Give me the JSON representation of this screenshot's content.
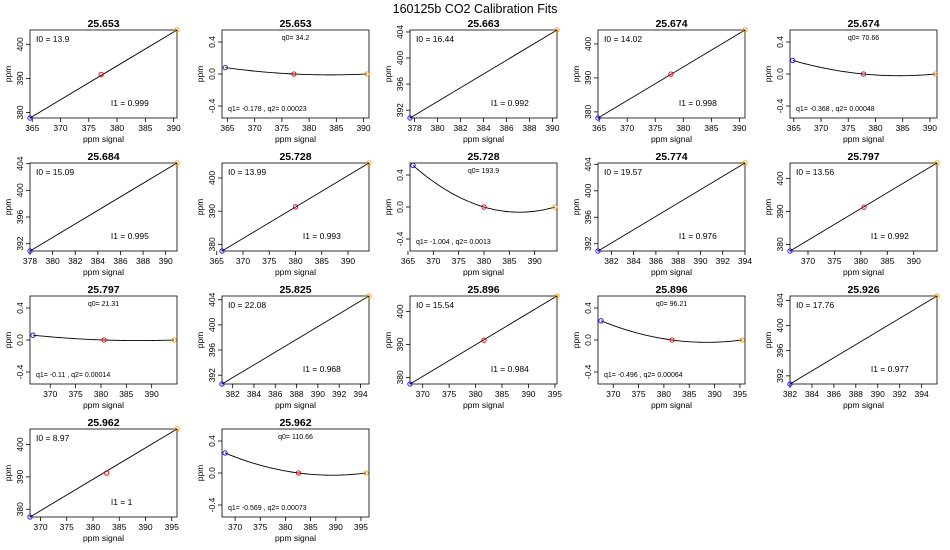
{
  "title": "160125b   CO2 Calibration Fits",
  "axis_labels": {
    "x": "ppm signal",
    "y": "ppm"
  },
  "point_colors": [
    "#2200ff",
    "#dd0000",
    "#ff9900"
  ],
  "chart_data": [
    {
      "type": "scatter",
      "kind": "linear",
      "title": "25.653",
      "x": [
        364.6,
        377.2,
        390.6
      ],
      "y": [
        378.4,
        391.2,
        404.2
      ],
      "xlim": [
        364.6,
        390.6
      ],
      "ylim": [
        378.4,
        404.2
      ],
      "xticks": [
        "365",
        "370",
        "375",
        "380",
        "385",
        "390"
      ],
      "yticks": [
        "380",
        "390",
        "400"
      ],
      "annotations": {
        "I0": "I0 =  13.9",
        "I1": "I1 =  0.999"
      }
    },
    {
      "type": "scatter",
      "kind": "quadratic",
      "title": "25.653",
      "x": [
        364.6,
        377.2,
        390.6
      ],
      "y": [
        0.08,
        0.0,
        0.0
      ],
      "xlim": [
        364.0,
        391.0
      ],
      "ylim": [
        -0.55,
        0.55
      ],
      "xticks": [
        "365",
        "370",
        "375",
        "380",
        "385",
        "390"
      ],
      "yticks": [
        "-0.4",
        "0.0",
        "0.4"
      ],
      "annotations": {
        "q0": "q0= 34.2",
        "q": "q1= -0.178 , q2= 0.00023"
      }
    },
    {
      "type": "scatter",
      "kind": "linear",
      "title": "25.663",
      "x": [
        377.6,
        390.4
      ],
      "y": [
        390.8,
        404.3
      ],
      "xlim": [
        377.6,
        390.4
      ],
      "ylim": [
        390.8,
        404.3
      ],
      "xticks": [
        "378",
        "380",
        "382",
        "384",
        "386",
        "388",
        "390"
      ],
      "yticks": [
        "392",
        "396",
        "400",
        "404"
      ],
      "annotations": {
        "I0": "I0 =  16.44",
        "I1": "I1 =  0.992"
      }
    },
    {
      "type": "scatter",
      "kind": "linear",
      "title": "25.674",
      "x": [
        364.8,
        377.8,
        391.0
      ],
      "y": [
        378.2,
        391.1,
        404.1
      ],
      "xlim": [
        364.8,
        391.0
      ],
      "ylim": [
        378.2,
        404.1
      ],
      "xticks": [
        "365",
        "370",
        "375",
        "380",
        "385",
        "390"
      ],
      "yticks": [
        "380",
        "390",
        "400"
      ],
      "annotations": {
        "I0": "I0 =  14.02",
        "I1": "I1 =  0.998"
      }
    },
    {
      "type": "scatter",
      "kind": "quadratic",
      "title": "25.674",
      "x": [
        364.8,
        377.8,
        391.0
      ],
      "y": [
        0.17,
        0.0,
        0.0
      ],
      "xlim": [
        364.3,
        391.3
      ],
      "ylim": [
        -0.55,
        0.55
      ],
      "xticks": [
        "365",
        "370",
        "375",
        "380",
        "385",
        "390"
      ],
      "yticks": [
        "-0.4",
        "0.0",
        "0.4"
      ],
      "annotations": {
        "q0": "q0= 70.66",
        "q": "q1= -0.368 , q2= 0.00048"
      }
    },
    {
      "type": "scatter",
      "kind": "linear",
      "title": "25.684",
      "x": [
        378.0,
        391.0
      ],
      "y": [
        390.9,
        404.1
      ],
      "xlim": [
        378.0,
        391.0
      ],
      "ylim": [
        390.9,
        404.1
      ],
      "xticks": [
        "378",
        "380",
        "382",
        "384",
        "386",
        "388",
        "390"
      ],
      "yticks": [
        "392",
        "396",
        "400",
        "404"
      ],
      "annotations": {
        "I0": "I0 =  15.09",
        "I1": "I1 =  0.995"
      }
    },
    {
      "type": "scatter",
      "kind": "linear",
      "title": "25.728",
      "x": [
        366.0,
        380.0,
        394.0
      ],
      "y": [
        378.0,
        391.3,
        404.5
      ],
      "xlim": [
        366.0,
        394.0
      ],
      "ylim": [
        378.0,
        404.5
      ],
      "xticks": [
        "365",
        "370",
        "375",
        "380",
        "385",
        "390"
      ],
      "yticks": [
        "380",
        "390",
        "400"
      ],
      "annotations": {
        "I0": "I0 =  13.99",
        "I1": "I1 =  0.993"
      }
    },
    {
      "type": "scatter",
      "kind": "quadratic",
      "title": "25.728",
      "x": [
        366.0,
        380.0,
        394.0
      ],
      "y": [
        0.52,
        0.0,
        0.0
      ],
      "xlim": [
        365.4,
        394.4
      ],
      "ylim": [
        -0.55,
        0.55
      ],
      "xticks": [
        "365",
        "370",
        "375",
        "380",
        "385",
        "390"
      ],
      "yticks": [
        "-0.4",
        "0.0",
        "0.4"
      ],
      "annotations": {
        "q0": "q0= 193.9",
        "q": "q1= -1.004 , q2= 0.0013"
      }
    },
    {
      "type": "scatter",
      "kind": "linear",
      "title": "25.774",
      "x": [
        380.8,
        394.0
      ],
      "y": [
        390.9,
        404.2
      ],
      "xlim": [
        380.8,
        394.0
      ],
      "ylim": [
        390.9,
        404.2
      ],
      "xticks": [
        "382",
        "384",
        "386",
        "388",
        "390",
        "392",
        "394"
      ],
      "yticks": [
        "392",
        "396",
        "400",
        "404"
      ],
      "annotations": {
        "I0": "I0 =  19.57",
        "I1": "I1 =  0.976"
      }
    },
    {
      "type": "scatter",
      "kind": "linear",
      "title": "25.797",
      "x": [
        366.6,
        380.6,
        394.4
      ],
      "y": [
        378.0,
        391.3,
        404.7
      ],
      "xlim": [
        366.6,
        394.4
      ],
      "ylim": [
        378.0,
        404.7
      ],
      "xticks": [
        "370",
        "375",
        "380",
        "385",
        "390"
      ],
      "yticks": [
        "380",
        "390",
        "400"
      ],
      "annotations": {
        "I0": "I0 =  13.56",
        "I1": "I1 =  0.992"
      }
    },
    {
      "type": "scatter",
      "kind": "quadratic",
      "title": "25.797",
      "x": [
        366.6,
        380.6,
        394.4
      ],
      "y": [
        0.06,
        0.0,
        0.0
      ],
      "xlim": [
        366.0,
        395.0
      ],
      "ylim": [
        -0.55,
        0.55
      ],
      "xticks": [
        "370",
        "375",
        "380",
        "385",
        "390"
      ],
      "yticks": [
        "-0.4",
        "0.0",
        "0.4"
      ],
      "annotations": {
        "q0": "q0= 21.31",
        "q": "q1= -0.11 , q2= 0.00014"
      }
    },
    {
      "type": "scatter",
      "kind": "linear",
      "title": "25.825",
      "x": [
        381.0,
        394.8
      ],
      "y": [
        390.6,
        404.6
      ],
      "xlim": [
        381.0,
        394.8
      ],
      "ylim": [
        390.6,
        404.6
      ],
      "xticks": [
        "382",
        "384",
        "386",
        "388",
        "390",
        "392",
        "394"
      ],
      "yticks": [
        "392",
        "396",
        "400",
        "404"
      ],
      "annotations": {
        "I0": "I0 =  22.08",
        "I1": "I1 =  0.968"
      }
    },
    {
      "type": "scatter",
      "kind": "linear",
      "title": "25.896",
      "x": [
        367.6,
        381.6,
        395.4
      ],
      "y": [
        378.0,
        391.3,
        404.7
      ],
      "xlim": [
        367.6,
        395.4
      ],
      "ylim": [
        378.0,
        404.7
      ],
      "xticks": [
        "370",
        "375",
        "380",
        "385",
        "390",
        "395"
      ],
      "yticks": [
        "380",
        "390",
        "400"
      ],
      "annotations": {
        "I0": "I0 =  15.54",
        "I1": "I1 =  0.984"
      }
    },
    {
      "type": "scatter",
      "kind": "quadratic",
      "title": "25.896",
      "x": [
        367.6,
        381.6,
        395.4
      ],
      "y": [
        0.24,
        0.0,
        0.0
      ],
      "xlim": [
        367.0,
        396.0
      ],
      "ylim": [
        -0.55,
        0.55
      ],
      "xticks": [
        "370",
        "375",
        "380",
        "385",
        "390",
        "395"
      ],
      "yticks": [
        "-0.4",
        "0.0",
        "0.4"
      ],
      "annotations": {
        "q0": "q0= 96.21",
        "q": "q1= -0.496 , q2= 0.00064"
      }
    },
    {
      "type": "scatter",
      "kind": "linear",
      "title": "25.926",
      "x": [
        382.0,
        395.4
      ],
      "y": [
        390.7,
        404.7
      ],
      "xlim": [
        382.0,
        395.4
      ],
      "ylim": [
        390.7,
        404.7
      ],
      "xticks": [
        "382",
        "384",
        "386",
        "388",
        "390",
        "392",
        "394"
      ],
      "yticks": [
        "392",
        "396",
        "400",
        "404"
      ],
      "annotations": {
        "I0": "I0 =  17.76",
        "I1": "I1 =  0.977"
      }
    },
    {
      "type": "scatter",
      "kind": "linear",
      "title": "25.962",
      "x": [
        368.0,
        382.6,
        396.0
      ],
      "y": [
        377.6,
        391.2,
        404.8
      ],
      "xlim": [
        368.0,
        396.0
      ],
      "ylim": [
        377.6,
        404.8
      ],
      "xticks": [
        "370",
        "375",
        "380",
        "385",
        "390",
        "395"
      ],
      "yticks": [
        "380",
        "390",
        "400"
      ],
      "annotations": {
        "I0": "I0 =  8.97",
        "I1": "I1 =  1"
      }
    },
    {
      "type": "scatter",
      "kind": "quadratic",
      "title": "25.962",
      "x": [
        368.0,
        382.6,
        396.0
      ],
      "y": [
        0.25,
        0.0,
        0.0
      ],
      "xlim": [
        367.4,
        396.6
      ],
      "ylim": [
        -0.55,
        0.55
      ],
      "xticks": [
        "370",
        "375",
        "380",
        "385",
        "390",
        "395"
      ],
      "yticks": [
        "-0.4",
        "0.0",
        "0.4"
      ],
      "annotations": {
        "q0": "q0= 110.66",
        "q": "q1= -0.569 , q2= 0.00073"
      }
    }
  ]
}
